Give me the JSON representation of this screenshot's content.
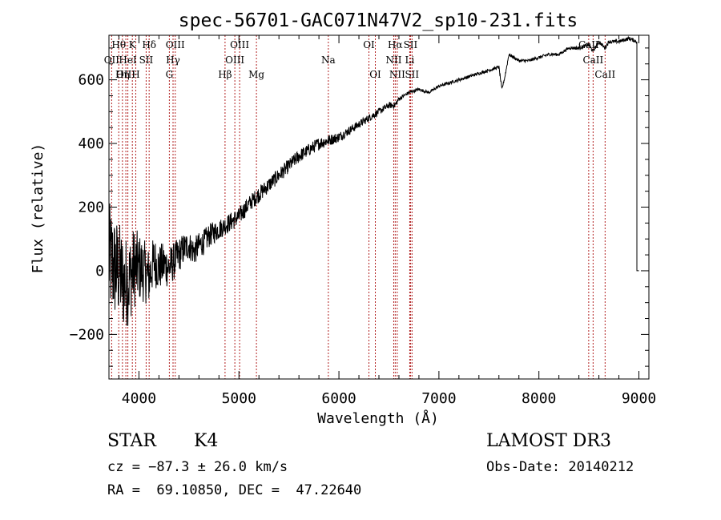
{
  "chart_data": {
    "type": "line",
    "title": "spec-56701-GAC071N47V2_sp10-231.fits",
    "xlabel": "Wavelength (Å)",
    "ylabel": "Flux (relative)",
    "xlim": [
      3700,
      9100
    ],
    "ylim": [
      -340,
      740
    ],
    "xticks": [
      4000,
      5000,
      6000,
      7000,
      8000,
      9000
    ],
    "xtick_labels": [
      "4000",
      "5000",
      "6000",
      "7000",
      "8000",
      "9000"
    ],
    "yticks": [
      -200,
      0,
      200,
      400,
      600
    ],
    "ytick_labels": [
      "−200",
      "0",
      "200",
      "400",
      "600"
    ],
    "grid": false,
    "colors": {
      "line": "#000000",
      "marker": "#b22222",
      "axis": "#000000"
    },
    "series": [
      {
        "name": "flux",
        "x": [
          3700,
          3750,
          3800,
          3850,
          3900,
          3950,
          4000,
          4050,
          4100,
          4150,
          4200,
          4250,
          4300,
          4350,
          4400,
          4450,
          4500,
          4550,
          4600,
          4650,
          4700,
          4750,
          4800,
          4850,
          4900,
          4950,
          5000,
          5050,
          5100,
          5200,
          5300,
          5400,
          5500,
          5600,
          5700,
          5800,
          5900,
          6000,
          6100,
          6200,
          6300,
          6400,
          6500,
          6560,
          6600,
          6650,
          6700,
          6800,
          6900,
          7000,
          7100,
          7200,
          7300,
          7400,
          7500,
          7600,
          7630,
          7660,
          7700,
          7750,
          7800,
          7900,
          8000,
          8100,
          8200,
          8300,
          8400,
          8500,
          8540,
          8600,
          8660,
          8700,
          8800,
          8900,
          8980,
          9000
        ],
        "y": [
          40,
          10,
          0,
          -40,
          -30,
          10,
          10,
          0,
          -20,
          30,
          10,
          20,
          10,
          30,
          50,
          70,
          80,
          60,
          80,
          90,
          110,
          120,
          130,
          140,
          150,
          160,
          170,
          190,
          210,
          240,
          270,
          300,
          330,
          360,
          380,
          400,
          410,
          420,
          440,
          460,
          480,
          500,
          520,
          520,
          540,
          550,
          560,
          570,
          560,
          580,
          590,
          600,
          610,
          620,
          630,
          640,
          570,
          610,
          680,
          670,
          660,
          660,
          670,
          680,
          680,
          700,
          700,
          710,
          690,
          720,
          700,
          720,
          720,
          730,
          720,
          0
        ],
        "noise": [
          180,
          170,
          160,
          150,
          140,
          130,
          110,
          100,
          90,
          80,
          75,
          70,
          65,
          60,
          55,
          50,
          45,
          45,
          40,
          40,
          38,
          35,
          33,
          30,
          30,
          30,
          28,
          28,
          26,
          26,
          24,
          24,
          22,
          22,
          20,
          20,
          18,
          16,
          14,
          13,
          12,
          11,
          10,
          10,
          8,
          6,
          5,
          5,
          5,
          5,
          5,
          5,
          5,
          5,
          5,
          5,
          5,
          5,
          5,
          5,
          5,
          5,
          5,
          5,
          5,
          5,
          6,
          6,
          6,
          6,
          6,
          6,
          6,
          6,
          6,
          0
        ]
      }
    ],
    "line_markers": [
      {
        "label": "Hθ",
        "x": 3798,
        "row": 0
      },
      {
        "label": "OII",
        "x": 3727,
        "row": 1
      },
      {
        "label": "OIII",
        "x": 3869,
        "row": 2
      },
      {
        "label": "K",
        "x": 3934,
        "row": 0
      },
      {
        "label": "HeI",
        "x": 3889,
        "row": 1
      },
      {
        "label": "Hη",
        "x": 3835,
        "row": 2
      },
      {
        "label": "H",
        "x": 3968,
        "row": 2
      },
      {
        "label": "Hδ",
        "x": 4102,
        "row": 0
      },
      {
        "label": "SII",
        "x": 4072,
        "row": 1
      },
      {
        "label": "OIII",
        "x": 4363,
        "row": 0
      },
      {
        "label": "Hγ",
        "x": 4341,
        "row": 1
      },
      {
        "label": "G",
        "x": 4304,
        "row": 2
      },
      {
        "label": "OIII",
        "x": 5007,
        "row": 0
      },
      {
        "label": "OIII",
        "x": 4959,
        "row": 1
      },
      {
        "label": "Hβ",
        "x": 4861,
        "row": 2
      },
      {
        "label": "Mg",
        "x": 5175,
        "row": 2
      },
      {
        "label": "Na",
        "x": 5894,
        "row": 1
      },
      {
        "label": "OI",
        "x": 6300,
        "row": 0
      },
      {
        "label": "OI",
        "x": 6364,
        "row": 2
      },
      {
        "label": "Hα",
        "x": 6563,
        "row": 0
      },
      {
        "label": "SII",
        "x": 6716,
        "row": 0
      },
      {
        "label": "NII",
        "x": 6548,
        "row": 1
      },
      {
        "label": "Li",
        "x": 6708,
        "row": 1
      },
      {
        "label": "NII",
        "x": 6583,
        "row": 2
      },
      {
        "label": "SII",
        "x": 6731,
        "row": 2
      },
      {
        "label": "CaII",
        "x": 8498,
        "row": 0
      },
      {
        "label": "CaII",
        "x": 8542,
        "row": 1
      },
      {
        "label": "CaII",
        "x": 8662,
        "row": 2
      }
    ]
  },
  "footer": {
    "class_label": "STAR",
    "subclass": "K4",
    "survey": "LAMOST DR3",
    "redshift_line": "cz = −87.3 ± 26.0 km/s",
    "obs_date_line": "Obs-Date: 20140212",
    "coords_line": "RA =  69.10850, DEC =  47.22640"
  }
}
